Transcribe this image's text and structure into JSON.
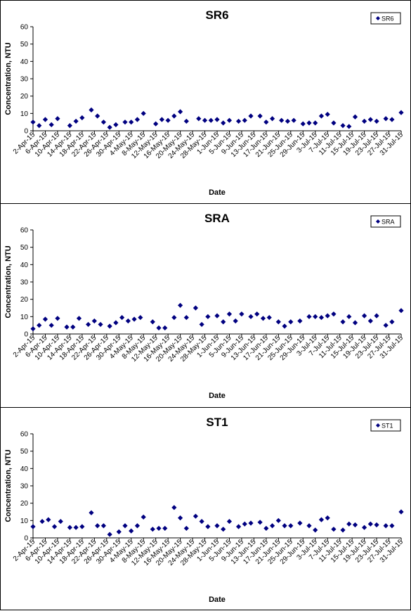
{
  "chart_data": [
    {
      "type": "scatter",
      "title": "SR6",
      "xlabel": "Date",
      "ylabel": "Concentration, NTU",
      "ylim": [
        0,
        60
      ],
      "yticks": [
        0,
        10,
        20,
        30,
        40,
        50,
        60
      ],
      "xlim": [
        "2-Apr-15",
        "31-Jul-15"
      ],
      "xtick_labels": [
        "2-Apr-15",
        "6-Apr-15",
        "10-Apr-15",
        "14-Apr-15",
        "18-Apr-15",
        "22-Apr-15",
        "26-Apr-15",
        "30-Apr-15",
        "4-May-15",
        "8-May-15",
        "12-May-15",
        "16-May-15",
        "20-May-15",
        "24-May-15",
        "28-May-15",
        "1-Jun-15",
        "5-Jun-15",
        "9-Jun-15",
        "13-Jun-15",
        "17-Jun-15",
        "21-Jun-15",
        "25-Jun-15",
        "29-Jun-15",
        "3-Jul-15",
        "7-Jul-15",
        "11-Jul-15",
        "15-Jul-15",
        "19-Jul-15",
        "23-Jul-15",
        "27-Jul-15",
        "31-Jul-15"
      ],
      "grid": false,
      "legend_position": "top-right",
      "marker_color": "#000080",
      "series": [
        {
          "name": "SR6",
          "x": [
            "2-Apr-15",
            "4-Apr-15",
            "6-Apr-15",
            "8-Apr-15",
            "10-Apr-15",
            "14-Apr-15",
            "16-Apr-15",
            "18-Apr-15",
            "21-Apr-15",
            "23-Apr-15",
            "25-Apr-15",
            "27-Apr-15",
            "29-Apr-15",
            "2-May-15",
            "4-May-15",
            "6-May-15",
            "8-May-15",
            "12-May-15",
            "14-May-15",
            "16-May-15",
            "18-May-15",
            "20-May-15",
            "22-May-15",
            "26-May-15",
            "28-May-15",
            "30-May-15",
            "1-Jun-15",
            "3-Jun-15",
            "5-Jun-15",
            "8-Jun-15",
            "10-Jun-15",
            "12-Jun-15",
            "15-Jun-15",
            "17-Jun-15",
            "19-Jun-15",
            "22-Jun-15",
            "24-Jun-15",
            "26-Jun-15",
            "29-Jun-15",
            "1-Jul-15",
            "3-Jul-15",
            "5-Jul-15",
            "7-Jul-15",
            "9-Jul-15",
            "12-Jul-15",
            "14-Jul-15",
            "16-Jul-15",
            "19-Jul-15",
            "21-Jul-15",
            "23-Jul-15",
            "26-Jul-15",
            "28-Jul-15",
            "31-Jul-15"
          ],
          "y": [
            5,
            3,
            6.5,
            3.5,
            7,
            3,
            5.5,
            7.5,
            12,
            8.5,
            5,
            2,
            3.5,
            5,
            5,
            6.5,
            10,
            4,
            6.5,
            6,
            8.5,
            11,
            5.5,
            7,
            6,
            6,
            6.5,
            4.5,
            6,
            5.5,
            6,
            8.5,
            8.5,
            5,
            7,
            6,
            5.5,
            6,
            4,
            4.5,
            4.5,
            8.5,
            9.5,
            4.5,
            3,
            2.5,
            8,
            5.5,
            6.5,
            5.5,
            7,
            6.5,
            10.5
          ]
        }
      ]
    },
    {
      "type": "scatter",
      "title": "SRA",
      "xlabel": "Date",
      "ylabel": "Concentration, NTU",
      "ylim": [
        0,
        60
      ],
      "yticks": [
        0,
        10,
        20,
        30,
        40,
        50,
        60
      ],
      "xlim": [
        "2-Apr-15",
        "31-Jul-15"
      ],
      "xtick_labels": [
        "2-Apr-15",
        "6-Apr-15",
        "10-Apr-15",
        "14-Apr-15",
        "18-Apr-15",
        "22-Apr-15",
        "26-Apr-15",
        "30-Apr-15",
        "4-May-15",
        "8-May-15",
        "12-May-15",
        "16-May-15",
        "20-May-15",
        "24-May-15",
        "28-May-15",
        "1-Jun-15",
        "5-Jun-15",
        "9-Jun-15",
        "13-Jun-15",
        "17-Jun-15",
        "21-Jun-15",
        "25-Jun-15",
        "29-Jun-15",
        "3-Jul-15",
        "7-Jul-15",
        "11-Jul-15",
        "15-Jul-15",
        "19-Jul-15",
        "23-Jul-15",
        "27-Jul-15",
        "31-Jul-15"
      ],
      "grid": false,
      "legend_position": "top-right",
      "marker_color": "#000080",
      "series": [
        {
          "name": "SRA",
          "x": [
            "2-Apr-15",
            "4-Apr-15",
            "6-Apr-15",
            "8-Apr-15",
            "10-Apr-15",
            "13-Apr-15",
            "15-Apr-15",
            "17-Apr-15",
            "20-Apr-15",
            "22-Apr-15",
            "24-Apr-15",
            "27-Apr-15",
            "29-Apr-15",
            "1-May-15",
            "3-May-15",
            "5-May-15",
            "7-May-15",
            "11-May-15",
            "13-May-15",
            "15-May-15",
            "18-May-15",
            "20-May-15",
            "22-May-15",
            "25-May-15",
            "27-May-15",
            "29-May-15",
            "1-Jun-15",
            "3-Jun-15",
            "5-Jun-15",
            "7-Jun-15",
            "9-Jun-15",
            "12-Jun-15",
            "14-Jun-15",
            "16-Jun-15",
            "18-Jun-15",
            "21-Jun-15",
            "23-Jun-15",
            "25-Jun-15",
            "28-Jun-15",
            "1-Jul-15",
            "3-Jul-15",
            "5-Jul-15",
            "7-Jul-15",
            "9-Jul-15",
            "12-Jul-15",
            "14-Jul-15",
            "16-Jul-15",
            "19-Jul-15",
            "21-Jul-15",
            "23-Jul-15",
            "26-Jul-15",
            "28-Jul-15",
            "31-Jul-15"
          ],
          "y": [
            3,
            5,
            8.5,
            5,
            9,
            4,
            4,
            9,
            5.5,
            7.5,
            5.5,
            4.5,
            6.5,
            9.5,
            7.5,
            8.5,
            9.5,
            7,
            3.5,
            3.5,
            9.5,
            16.5,
            9.5,
            15,
            5.5,
            10,
            10.5,
            7,
            11.5,
            7.5,
            11.5,
            10,
            11.5,
            9,
            9.5,
            7,
            4.5,
            7,
            7.5,
            10,
            10,
            9.5,
            10.5,
            11.5,
            7,
            10,
            6.5,
            10.5,
            7.5,
            10.5,
            5,
            7,
            13.5
          ]
        }
      ]
    },
    {
      "type": "scatter",
      "title": "ST1",
      "xlabel": "Date",
      "ylabel": "Concentration, NTU",
      "ylim": [
        0,
        60
      ],
      "yticks": [
        0,
        10,
        20,
        30,
        40,
        50,
        60
      ],
      "xlim": [
        "2-Apr-15",
        "31-Jul-15"
      ],
      "xtick_labels": [
        "2-Apr-15",
        "6-Apr-15",
        "10-Apr-15",
        "14-Apr-15",
        "18-Apr-15",
        "22-Apr-15",
        "26-Apr-15",
        "30-Apr-15",
        "4-May-15",
        "8-May-15",
        "12-May-15",
        "16-May-15",
        "20-May-15",
        "24-May-15",
        "28-May-15",
        "1-Jun-15",
        "5-Jun-15",
        "9-Jun-15",
        "13-Jun-15",
        "17-Jun-15",
        "21-Jun-15",
        "25-Jun-15",
        "29-Jun-15",
        "3-Jul-15",
        "7-Jul-15",
        "11-Jul-15",
        "15-Jul-15",
        "19-Jul-15",
        "23-Jul-15",
        "27-Jul-15",
        "31-Jul-15"
      ],
      "grid": false,
      "legend_position": "top-right",
      "marker_color": "#000080",
      "series": [
        {
          "name": "ST1",
          "x": [
            "2-Apr-15",
            "5-Apr-15",
            "7-Apr-15",
            "9-Apr-15",
            "11-Apr-15",
            "14-Apr-15",
            "16-Apr-15",
            "18-Apr-15",
            "21-Apr-15",
            "23-Apr-15",
            "25-Apr-15",
            "27-Apr-15",
            "30-Apr-15",
            "2-May-15",
            "4-May-15",
            "6-May-15",
            "8-May-15",
            "11-May-15",
            "13-May-15",
            "15-May-15",
            "18-May-15",
            "20-May-15",
            "22-May-15",
            "25-May-15",
            "27-May-15",
            "29-May-15",
            "1-Jun-15",
            "3-Jun-15",
            "5-Jun-15",
            "8-Jun-15",
            "10-Jun-15",
            "12-Jun-15",
            "15-Jun-15",
            "17-Jun-15",
            "19-Jun-15",
            "21-Jun-15",
            "23-Jun-15",
            "25-Jun-15",
            "28-Jun-15",
            "1-Jul-15",
            "3-Jul-15",
            "5-Jul-15",
            "7-Jul-15",
            "9-Jul-15",
            "12-Jul-15",
            "14-Jul-15",
            "16-Jul-15",
            "19-Jul-15",
            "21-Jul-15",
            "23-Jul-15",
            "26-Jul-15",
            "28-Jul-15",
            "31-Jul-15"
          ],
          "y": [
            6.5,
            9.5,
            10.5,
            6.5,
            9.5,
            6,
            6,
            6.5,
            14.5,
            7,
            7,
            2,
            3.5,
            7,
            4,
            7,
            12,
            5,
            5.5,
            5.5,
            17.5,
            11.5,
            5.5,
            12.5,
            9.5,
            6.5,
            7,
            5,
            9.5,
            6.5,
            8,
            8.5,
            9,
            5.5,
            7,
            10,
            7,
            7,
            8.5,
            7,
            4.5,
            10.5,
            11.5,
            5,
            4.5,
            8,
            7.5,
            6,
            8,
            7.5,
            7,
            7,
            15
          ]
        }
      ]
    }
  ]
}
